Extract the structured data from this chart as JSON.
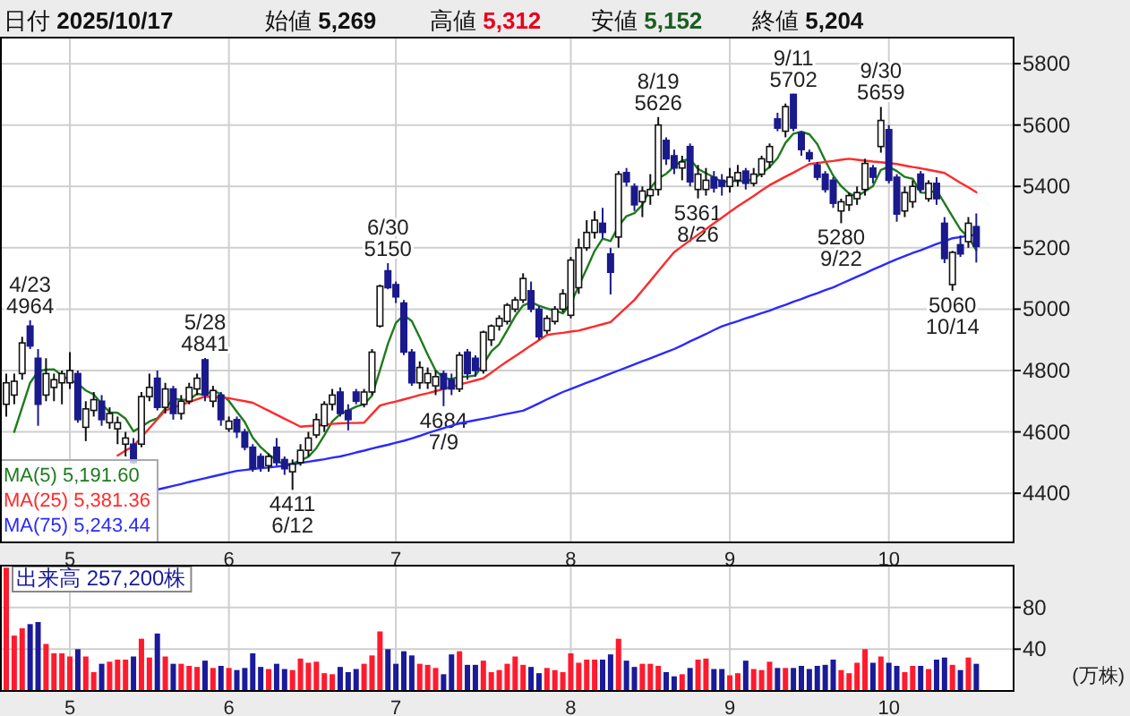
{
  "chart_data": [
    {
      "type": "candlestick",
      "categories": [
        null,
        null,
        null,
        null,
        null,
        null,
        null,
        null,
        "5",
        null,
        null,
        null,
        null,
        null,
        null,
        null,
        null,
        null,
        null,
        null,
        null,
        null,
        null,
        null,
        null,
        null,
        null,
        null,
        "6",
        null,
        null,
        null,
        null,
        null,
        null,
        null,
        null,
        null,
        null,
        null,
        null,
        null,
        null,
        null,
        null,
        null,
        null,
        null,
        null,
        "7",
        null,
        null,
        null,
        null,
        null,
        null,
        null,
        null,
        null,
        null,
        null,
        null,
        null,
        null,
        null,
        null,
        null,
        null,
        null,
        null,
        null,
        "8",
        null,
        null,
        null,
        null,
        null,
        null,
        null,
        null,
        null,
        null,
        null,
        null,
        null,
        null,
        null,
        null,
        null,
        null,
        null,
        "9",
        null,
        null,
        null,
        null,
        null,
        null,
        null,
        null,
        null,
        null,
        null,
        null,
        null,
        null,
        null,
        null,
        null,
        null,
        null,
        "10",
        null,
        null,
        null,
        null,
        null,
        null,
        null,
        null,
        null,
        null,
        null
      ],
      "ohlc": [
        [
          4690,
          4790,
          4650,
          4760
        ],
        [
          4720,
          4790,
          4690,
          4765
        ],
        [
          4790,
          4910,
          4770,
          4890
        ],
        [
          4945,
          4964,
          4870,
          4880
        ],
        [
          4840,
          4870,
          4620,
          4690
        ],
        [
          4720,
          4840,
          4700,
          4790
        ],
        [
          4745,
          4790,
          4700,
          4770
        ],
        [
          4760,
          4800,
          4690,
          4790
        ],
        [
          4760,
          4860,
          4740,
          4800
        ],
        [
          4790,
          4800,
          4630,
          4640
        ],
        [
          4615,
          4700,
          4570,
          4675
        ],
        [
          4670,
          4730,
          4650,
          4705
        ],
        [
          4700,
          4720,
          4620,
          4640
        ],
        [
          4630,
          4680,
          4610,
          4660
        ],
        [
          4610,
          4650,
          4560,
          4630
        ],
        [
          4560,
          4600,
          4520,
          4580
        ],
        [
          4560,
          4580,
          4495,
          4500
        ],
        [
          4560,
          4730,
          4550,
          4715
        ],
        [
          4715,
          4790,
          4700,
          4745
        ],
        [
          4775,
          4800,
          4670,
          4680
        ],
        [
          4680,
          4760,
          4660,
          4740
        ],
        [
          4740,
          4750,
          4640,
          4660
        ],
        [
          4660,
          4720,
          4640,
          4700
        ],
        [
          4700,
          4760,
          4690,
          4745
        ],
        [
          4740,
          4790,
          4720,
          4775
        ],
        [
          4835,
          4841,
          4700,
          4720
        ],
        [
          4700,
          4750,
          4680,
          4735
        ],
        [
          4720,
          4730,
          4620,
          4640
        ],
        [
          4610,
          4650,
          4600,
          4635
        ],
        [
          4640,
          4650,
          4580,
          4600
        ],
        [
          4600,
          4610,
          4540,
          4550
        ],
        [
          4550,
          4560,
          4470,
          4480
        ],
        [
          4520,
          4530,
          4470,
          4485
        ],
        [
          4490,
          4530,
          4470,
          4520
        ],
        [
          4550,
          4580,
          4490,
          4500
        ],
        [
          4510,
          4520,
          4460,
          4480
        ],
        [
          4470,
          4510,
          4411,
          4495
        ],
        [
          4500,
          4560,
          4490,
          4540
        ],
        [
          4540,
          4600,
          4520,
          4580
        ],
        [
          4590,
          4660,
          4580,
          4640
        ],
        [
          4620,
          4700,
          4600,
          4690
        ],
        [
          4690,
          4740,
          4670,
          4720
        ],
        [
          4730,
          4745,
          4650,
          4660
        ],
        [
          4670,
          4690,
          4605,
          4640
        ],
        [
          4730,
          4740,
          4690,
          4700
        ],
        [
          4690,
          4740,
          4680,
          4730
        ],
        [
          4730,
          4870,
          4720,
          4860
        ],
        [
          4945,
          5080,
          4940,
          5075
        ],
        [
          5125,
          5150,
          5065,
          5070
        ],
        [
          5080,
          5090,
          5020,
          5040
        ],
        [
          5020,
          5030,
          4850,
          4860
        ],
        [
          4860,
          4870,
          4750,
          4760
        ],
        [
          4760,
          4830,
          4740,
          4810
        ],
        [
          4760,
          4810,
          4740,
          4790
        ],
        [
          4750,
          4800,
          4720,
          4780
        ],
        [
          4790,
          4800,
          4684,
          4740
        ],
        [
          4770,
          4790,
          4720,
          4740
        ],
        [
          4740,
          4860,
          4730,
          4850
        ],
        [
          4860,
          4870,
          4770,
          4790
        ],
        [
          4840,
          4850,
          4780,
          4800
        ],
        [
          4800,
          4930,
          4790,
          4925
        ],
        [
          4900,
          4950,
          4880,
          4945
        ],
        [
          4945,
          4980,
          4930,
          4970
        ],
        [
          4960,
          5020,
          4950,
          5013
        ],
        [
          5000,
          5040,
          4990,
          5030
        ],
        [
          5030,
          5117,
          5020,
          5100
        ],
        [
          5060,
          5090,
          4990,
          5000
        ],
        [
          5000,
          5010,
          4900,
          4910
        ],
        [
          4930,
          4980,
          4920,
          4970
        ],
        [
          4960,
          5010,
          4950,
          5000
        ],
        [
          5000,
          5065,
          4990,
          5050
        ],
        [
          4980,
          5170,
          4970,
          5160
        ],
        [
          5070,
          5230,
          5050,
          5200
        ],
        [
          5200,
          5290,
          5190,
          5250
        ],
        [
          5250,
          5320,
          5230,
          5290
        ],
        [
          5280,
          5330,
          5230,
          5250
        ],
        [
          5180,
          5200,
          5048,
          5120
        ],
        [
          5235,
          5450,
          5200,
          5440
        ],
        [
          5445,
          5460,
          5400,
          5415
        ],
        [
          5400,
          5410,
          5320,
          5340
        ],
        [
          5350,
          5400,
          5300,
          5385
        ],
        [
          5370,
          5440,
          5340,
          5390
        ],
        [
          5390,
          5626,
          5370,
          5600
        ],
        [
          5550,
          5560,
          5470,
          5490
        ],
        [
          5500,
          5520,
          5440,
          5460
        ],
        [
          5460,
          5500,
          5420,
          5480
        ],
        [
          5530,
          5540,
          5400,
          5415
        ],
        [
          5390,
          5470,
          5361,
          5440
        ],
        [
          5390,
          5460,
          5370,
          5420
        ],
        [
          5430,
          5450,
          5380,
          5395
        ],
        [
          5420,
          5440,
          5370,
          5400
        ],
        [
          5400,
          5460,
          5380,
          5430
        ],
        [
          5420,
          5470,
          5400,
          5445
        ],
        [
          5450,
          5460,
          5390,
          5410
        ],
        [
          5410,
          5460,
          5400,
          5440
        ],
        [
          5440,
          5500,
          5430,
          5490
        ],
        [
          5480,
          5540,
          5460,
          5530
        ],
        [
          5620,
          5640,
          5580,
          5590
        ],
        [
          5580,
          5670,
          5560,
          5660
        ],
        [
          5700,
          5702,
          5580,
          5590
        ],
        [
          5575,
          5580,
          5500,
          5520
        ],
        [
          5510,
          5520,
          5480,
          5490
        ],
        [
          5470,
          5480,
          5420,
          5430
        ],
        [
          5440,
          5450,
          5380,
          5390
        ],
        [
          5420,
          5430,
          5330,
          5345
        ],
        [
          5320,
          5360,
          5280,
          5350
        ],
        [
          5340,
          5380,
          5320,
          5370
        ],
        [
          5360,
          5400,
          5340,
          5380
        ],
        [
          5390,
          5490,
          5370,
          5475
        ],
        [
          5460,
          5470,
          5410,
          5430
        ],
        [
          5530,
          5659,
          5510,
          5615
        ],
        [
          5585,
          5600,
          5410,
          5420
        ],
        [
          5430,
          5440,
          5285,
          5310
        ],
        [
          5320,
          5400,
          5300,
          5380
        ],
        [
          5350,
          5420,
          5330,
          5400
        ],
        [
          5440,
          5450,
          5380,
          5390
        ],
        [
          5360,
          5420,
          5350,
          5410
        ],
        [
          5410,
          5430,
          5340,
          5360
        ],
        [
          5280,
          5300,
          5150,
          5165
        ],
        [
          5080,
          5190,
          5060,
          5185
        ],
        [
          5210,
          5240,
          5170,
          5180
        ],
        [
          5220,
          5300,
          5200,
          5280
        ],
        [
          5269,
          5312,
          5152,
          5204
        ]
      ],
      "series": [
        {
          "name": "MA(5) 5,191.60",
          "type": "line",
          "color": "#1e7b1e",
          "values": [
            null,
            4600,
            4680,
            4760,
            4797,
            4803,
            4804,
            4784,
            4768,
            4758,
            4735,
            4722,
            4692,
            4664,
            4662,
            4643,
            4602,
            4617,
            4634,
            4644,
            4676,
            4708,
            4705,
            4705,
            4724,
            4720,
            4735,
            4723,
            4701,
            4666,
            4632,
            4581,
            4550,
            4527,
            4507,
            4493,
            4496,
            4507,
            4519,
            4547,
            4589,
            4634,
            4658,
            4670,
            4682,
            4690,
            4718,
            4801,
            4887,
            4955,
            4981,
            4961,
            4908,
            4852,
            4800,
            4776,
            4772,
            4780,
            4780,
            4784,
            4821,
            4862,
            4886,
            4931,
            4977,
            5012,
            5023,
            5011,
            5002,
            4996,
            4986,
            5018,
            5076,
            5132,
            5190,
            5230,
            5222,
            5270,
            5303,
            5313,
            5340,
            5394,
            5426,
            5441,
            5465,
            5484,
            5489,
            5457,
            5443,
            5430,
            5414,
            5417,
            5418,
            5416,
            5425,
            5443,
            5463,
            5492,
            5542,
            5572,
            5578,
            5570,
            5538,
            5484,
            5435,
            5401,
            5377,
            5367,
            5384,
            5401,
            5454,
            5464,
            5450,
            5431,
            5425,
            5380,
            5378,
            5388,
            5345,
            5302,
            5260,
            5234,
            5192
          ]
        },
        {
          "name": "MA(25) 5,381.36",
          "type": "line",
          "color": "#ff2a2a",
          "values": [
            null,
            null,
            null,
            null,
            null,
            null,
            null,
            null,
            null,
            null,
            null,
            null,
            null,
            null,
            4523,
            4539,
            4554,
            4583,
            4612,
            4641,
            4670,
            4679,
            4688,
            4697,
            4706,
            4715,
            4713,
            4712,
            4710,
            4705,
            4700,
            4695,
            4682,
            4669,
            4656,
            4643,
            4630,
            4617,
            4619,
            4621,
            4624,
            4626,
            4628,
            4629,
            4629,
            4630,
            4658,
            4686,
            4693,
            4699,
            4706,
            4713,
            4720,
            4726,
            4733,
            4740,
            4747,
            4754,
            4761,
            4768,
            4775,
            4793,
            4812,
            4830,
            4847,
            4864,
            4882,
            4899,
            4916,
            4920,
            4923,
            4927,
            4930,
            4937,
            4944,
            4951,
            4958,
            4982,
            5006,
            5030,
            5061,
            5092,
            5124,
            5155,
            5186,
            5205,
            5224,
            5243,
            5261,
            5280,
            5298,
            5317,
            5335,
            5352,
            5369,
            5387,
            5404,
            5418,
            5432,
            5445,
            5459,
            5473,
            5476,
            5480,
            5483,
            5487,
            5490,
            5487,
            5484,
            5481,
            5479,
            5476,
            5473,
            5468,
            5463,
            5459,
            5454,
            5449,
            5444,
            5428,
            5412,
            5397,
            5381
          ]
        },
        {
          "name": "MA(75) 5,243.44",
          "type": "line",
          "color": "#2a2aff",
          "values": [
            null,
            null,
            null,
            null,
            null,
            null,
            null,
            null,
            null,
            null,
            null,
            null,
            null,
            null,
            null,
            null,
            null,
            null,
            null,
            4412,
            4418,
            4424,
            4430,
            4437,
            4443,
            4449,
            4455,
            4461,
            4467,
            4473,
            4476,
            4479,
            4482,
            4484,
            4487,
            4490,
            4494,
            4499,
            4503,
            4507,
            4511,
            4516,
            4520,
            4526,
            4533,
            4539,
            4546,
            4552,
            4558,
            4565,
            4571,
            4579,
            4587,
            4596,
            4604,
            4612,
            4620,
            4628,
            4633,
            4638,
            4643,
            4648,
            4654,
            4659,
            4664,
            4669,
            4681,
            4693,
            4706,
            4718,
            4730,
            4740,
            4750,
            4760,
            4770,
            4780,
            4790,
            4800,
            4810,
            4820,
            4830,
            4840,
            4850,
            4860,
            4870,
            4882,
            4895,
            4907,
            4919,
            4932,
            4944,
            4953,
            4961,
            4970,
            4978,
            4987,
            4995,
            5005,
            5014,
            5024,
            5033,
            5043,
            5052,
            5062,
            5071,
            5083,
            5094,
            5106,
            5117,
            5129,
            5140,
            5152,
            5163,
            5173,
            5183,
            5192,
            5202,
            5212,
            5221,
            5231,
            5235,
            5239,
            5243
          ]
        }
      ],
      "ylim": [
        4240,
        5885
      ],
      "yticks": [
        4400,
        4600,
        4800,
        5000,
        5200,
        5400,
        5600,
        5800
      ],
      "grid": true,
      "legend": "bottom left",
      "annotations": [
        "日付 2025/10/17",
        "始値 5,269",
        "高値 5,312",
        "安値 5,152",
        "終値 5,204",
        {
          "text": "4/23\n4964",
          "y": 4964
        },
        {
          "text": "5/28\n4841",
          "y": 4841
        },
        {
          "text": "4411\n6/12",
          "y": 4411
        },
        {
          "text": "6/30\n5150",
          "y": 5150
        },
        {
          "text": "4684\n7/9",
          "y": 4684
        },
        {
          "text": "8/19\n5626",
          "y": 5626
        },
        {
          "text": "5361\n8/26",
          "y": 5361
        },
        {
          "text": "9/11\n5702",
          "y": 5702
        },
        {
          "text": "5280\n9/22",
          "y": 5280
        },
        {
          "text": "9/30\n5659",
          "y": 5659
        },
        {
          "text": "5060\n10/14",
          "y": 5060
        }
      ]
    },
    {
      "type": "bar",
      "title": "出来高 257,200株",
      "ylabel": "(万株)",
      "categories": [
        null,
        null,
        null,
        null,
        null,
        null,
        null,
        null,
        "5",
        null,
        null,
        null,
        null,
        null,
        null,
        null,
        null,
        null,
        null,
        null,
        null,
        null,
        null,
        null,
        null,
        null,
        null,
        null,
        "6",
        null,
        null,
        null,
        null,
        null,
        null,
        null,
        null,
        null,
        null,
        null,
        null,
        null,
        null,
        null,
        null,
        null,
        null,
        null,
        null,
        "7",
        null,
        null,
        null,
        null,
        null,
        null,
        null,
        null,
        null,
        null,
        null,
        null,
        null,
        null,
        null,
        null,
        null,
        null,
        null,
        null,
        null,
        "8",
        null,
        null,
        null,
        null,
        null,
        null,
        null,
        null,
        null,
        null,
        null,
        null,
        null,
        null,
        null,
        null,
        null,
        null,
        null,
        "9",
        null,
        null,
        null,
        null,
        null,
        null,
        null,
        null,
        null,
        null,
        null,
        null,
        null,
        null,
        null,
        null,
        null,
        null,
        null,
        "10",
        null,
        null,
        null,
        null,
        null,
        null,
        null,
        null,
        null,
        null,
        null
      ],
      "values": [
        118,
        53,
        60,
        64,
        66,
        45,
        36,
        36,
        33,
        40,
        33,
        18,
        26,
        28,
        30,
        30,
        33,
        50,
        32,
        55,
        33,
        26,
        26,
        24,
        23,
        29,
        22,
        24,
        22,
        20,
        22,
        36,
        23,
        21,
        26,
        21,
        20,
        31,
        27,
        28,
        17,
        16,
        23,
        18,
        21,
        26,
        34,
        57,
        40,
        26,
        38,
        34,
        26,
        25,
        22,
        16,
        35,
        38,
        25,
        25,
        29,
        18,
        20,
        26,
        33,
        25,
        23,
        17,
        22,
        20,
        18,
        36,
        27,
        30,
        30,
        30,
        35,
        50,
        29,
        23,
        26,
        26,
        24,
        18,
        14,
        16,
        22,
        30,
        31,
        21,
        21,
        15,
        17,
        29,
        21,
        20,
        28,
        22,
        22,
        22,
        24,
        21,
        24,
        25,
        30,
        20,
        17,
        27,
        40,
        27,
        33,
        27,
        24,
        18,
        24,
        24,
        21,
        30,
        32,
        25,
        20,
        32,
        26
      ],
      "colors": [
        "#ff1a2e",
        "#ff1a2e",
        "#ff1a2e",
        "#1a1a9a",
        "#1a1a9a",
        "#ff1a2e",
        "#ff1a2e",
        "#ff1a2e",
        "#ff1a2e",
        "#1a1a9a",
        "#ff1a2e",
        "#ff1a2e",
        "#1a1a9a",
        "#ff1a2e",
        "#ff1a2e",
        "#ff1a2e",
        "#1a1a9a",
        "#ff1a2e",
        "#ff1a2e",
        "#1a1a9a",
        "#ff1a2e",
        "#1a1a9a",
        "#ff1a2e",
        "#ff1a2e",
        "#ff1a2e",
        "#1a1a9a",
        "#ff1a2e",
        "#1a1a9a",
        "#ff1a2e",
        "#1a1a9a",
        "#1a1a9a",
        "#1a1a9a",
        "#1a1a9a",
        "#ff1a2e",
        "#1a1a9a",
        "#1a1a9a",
        "#ff1a2e",
        "#ff1a2e",
        "#ff1a2e",
        "#ff1a2e",
        "#ff1a2e",
        "#ff1a2e",
        "#1a1a9a",
        "#1a1a9a",
        "#1a1a9a",
        "#ff1a2e",
        "#ff1a2e",
        "#ff1a2e",
        "#1a1a9a",
        "#1a1a9a",
        "#1a1a9a",
        "#1a1a9a",
        "#ff1a2e",
        "#ff1a2e",
        "#ff1a2e",
        "#1a1a9a",
        "#1a1a9a",
        "#ff1a2e",
        "#1a1a9a",
        "#1a1a9a",
        "#ff1a2e",
        "#ff1a2e",
        "#ff1a2e",
        "#ff1a2e",
        "#ff1a2e",
        "#ff1a2e",
        "#1a1a9a",
        "#1a1a9a",
        "#ff1a2e",
        "#ff1a2e",
        "#ff1a2e",
        "#ff1a2e",
        "#ff1a2e",
        "#ff1a2e",
        "#ff1a2e",
        "#1a1a9a",
        "#1a1a9a",
        "#ff1a2e",
        "#1a1a9a",
        "#1a1a9a",
        "#ff1a2e",
        "#ff1a2e",
        "#ff1a2e",
        "#1a1a9a",
        "#1a1a9a",
        "#ff1a2e",
        "#1a1a9a",
        "#ff1a2e",
        "#ff1a2e",
        "#1a1a9a",
        "#1a1a9a",
        "#ff1a2e",
        "#ff1a2e",
        "#1a1a9a",
        "#ff1a2e",
        "#ff1a2e",
        "#ff1a2e",
        "#1a1a9a",
        "#ff1a2e",
        "#1a1a9a",
        "#1a1a9a",
        "#1a1a9a",
        "#1a1a9a",
        "#1a1a9a",
        "#1a1a9a",
        "#ff1a2e",
        "#ff1a2e",
        "#ff1a2e",
        "#ff1a2e",
        "#1a1a9a",
        "#ff1a2e",
        "#1a1a9a",
        "#1a1a9a",
        "#ff1a2e",
        "#ff1a2e",
        "#1a1a9a",
        "#ff1a2e",
        "#1a1a9a",
        "#1a1a9a",
        "#ff1a2e",
        "#1a1a9a",
        "#ff1a2e",
        "#1a1a9a"
      ],
      "ylim": [
        0,
        120
      ],
      "yticks": [
        40,
        80
      ],
      "grid": true
    }
  ]
}
